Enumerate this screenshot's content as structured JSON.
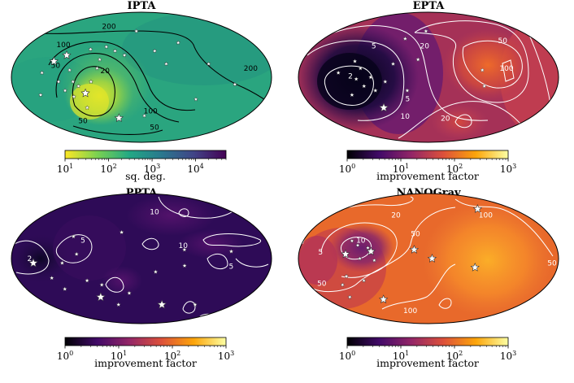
{
  "chart_data": [
    {
      "type": "heatmap",
      "projection": "mollweide",
      "title": "IPTA",
      "colormap": "viridis (reversed)",
      "colorbar": {
        "label": "sq. deg.",
        "scale": "log",
        "range": [
          10,
          50000
        ],
        "ticks": [
          {
            "base": "10",
            "exp": "1"
          },
          {
            "base": "10",
            "exp": "2"
          },
          {
            "base": "10",
            "exp": "3"
          },
          {
            "base": "10",
            "exp": "4"
          }
        ]
      },
      "contour_levels": [
        "20",
        "50",
        "100",
        "200"
      ],
      "contour_labels": [
        {
          "text": "200",
          "rel": [
            -0.25,
            0.78
          ]
        },
        {
          "text": "100",
          "rel": [
            -0.6,
            0.5
          ]
        },
        {
          "text": "50",
          "rel": [
            -0.66,
            0.18
          ]
        },
        {
          "text": "20",
          "rel": [
            -0.28,
            0.1
          ]
        },
        {
          "text": "200",
          "rel": [
            0.84,
            0.14
          ]
        },
        {
          "text": "100",
          "rel": [
            0.07,
            -0.52
          ]
        },
        {
          "text": "50",
          "rel": [
            0.1,
            -0.77
          ]
        },
        {
          "text": "50",
          "rel": [
            -0.45,
            -0.67
          ]
        }
      ],
      "pulsars": [
        {
          "lon": -125,
          "lat": 18,
          "size": "large"
        },
        {
          "lon": -110,
          "lat": 25,
          "size": "large"
        },
        {
          "lon": -100,
          "lat": 8,
          "size": "small"
        },
        {
          "lon": -95,
          "lat": -5,
          "size": "small"
        },
        {
          "lon": -115,
          "lat": -5,
          "size": "small"
        },
        {
          "lon": -108,
          "lat": -15,
          "size": "small"
        },
        {
          "lon": -98,
          "lat": -22,
          "size": "small"
        },
        {
          "lon": -88,
          "lat": -10,
          "size": "small"
        },
        {
          "lon": -80,
          "lat": -18,
          "size": "large"
        },
        {
          "lon": -70,
          "lat": -5,
          "size": "small"
        },
        {
          "lon": -62,
          "lat": 10,
          "size": "small"
        },
        {
          "lon": -78,
          "lat": 32,
          "size": "small"
        },
        {
          "lon": -55,
          "lat": 35,
          "size": "small"
        },
        {
          "lon": -40,
          "lat": 30,
          "size": "small"
        },
        {
          "lon": -85,
          "lat": -35,
          "size": "small"
        },
        {
          "lon": -145,
          "lat": -20,
          "size": "small"
        },
        {
          "lon": -138,
          "lat": 5,
          "size": "small"
        },
        {
          "lon": -25,
          "lat": 25,
          "size": "small"
        },
        {
          "lon": -10,
          "lat": 55,
          "size": "small"
        },
        {
          "lon": 20,
          "lat": 30,
          "size": "small"
        },
        {
          "lon": 35,
          "lat": 15,
          "size": "small"
        },
        {
          "lon": 60,
          "lat": 40,
          "size": "small"
        },
        {
          "lon": 95,
          "lat": 15,
          "size": "small"
        },
        {
          "lon": 130,
          "lat": -8,
          "size": "small"
        },
        {
          "lon": 80,
          "lat": -25,
          "size": "small"
        },
        {
          "lon": -40,
          "lat": -48,
          "size": "large"
        },
        {
          "lon": 5,
          "lat": -45,
          "size": "small"
        },
        {
          "lon": -60,
          "lat": 20,
          "size": "small"
        }
      ]
    },
    {
      "type": "heatmap",
      "projection": "mollweide",
      "title": "EPTA",
      "colormap": "inferno",
      "colorbar": {
        "label": "improvement factor",
        "scale": "log",
        "range": [
          1,
          1000
        ],
        "ticks": [
          {
            "base": "10",
            "exp": "0"
          },
          {
            "base": "10",
            "exp": "1"
          },
          {
            "base": "10",
            "exp": "2"
          },
          {
            "base": "10",
            "exp": "3"
          }
        ]
      },
      "contour_levels": [
        "2",
        "5",
        "10",
        "20",
        "50",
        "100"
      ],
      "contour_labels": [
        {
          "text": "2",
          "rel": [
            -0.6,
            0.02
          ]
        },
        {
          "text": "5",
          "rel": [
            -0.42,
            0.48
          ]
        },
        {
          "text": "5",
          "rel": [
            -0.16,
            -0.33
          ]
        },
        {
          "text": "20",
          "rel": [
            -0.03,
            0.48
          ]
        },
        {
          "text": "10",
          "rel": [
            -0.18,
            -0.6
          ]
        },
        {
          "text": "20",
          "rel": [
            0.13,
            -0.63
          ]
        },
        {
          "text": "50",
          "rel": [
            0.57,
            0.56
          ]
        },
        {
          "text": "100",
          "rel": [
            0.6,
            0.14
          ]
        }
      ],
      "pulsars": [
        {
          "lon": -105,
          "lat": 18,
          "size": "small"
        },
        {
          "lon": -95,
          "lat": 10,
          "size": "small"
        },
        {
          "lon": -100,
          "lat": -2,
          "size": "small"
        },
        {
          "lon": -90,
          "lat": -10,
          "size": "small"
        },
        {
          "lon": -80,
          "lat": 0,
          "size": "small"
        },
        {
          "lon": -110,
          "lat": -20,
          "size": "small"
        },
        {
          "lon": -75,
          "lat": -15,
          "size": "small"
        },
        {
          "lon": -60,
          "lat": -5,
          "size": "small"
        },
        {
          "lon": -70,
          "lat": -35,
          "size": "large"
        },
        {
          "lon": -50,
          "lat": 15,
          "size": "small"
        },
        {
          "lon": -40,
          "lat": 45,
          "size": "small"
        },
        {
          "lon": -15,
          "lat": 20,
          "size": "small"
        },
        {
          "lon": -30,
          "lat": -15,
          "size": "small"
        },
        {
          "lon": -125,
          "lat": 5,
          "size": "small"
        },
        {
          "lon": 75,
          "lat": 8,
          "size": "small"
        },
        {
          "lon": 78,
          "lat": -10,
          "size": "small"
        },
        {
          "lon": -5,
          "lat": 55,
          "size": "small"
        }
      ]
    },
    {
      "type": "heatmap",
      "projection": "mollweide",
      "title": "PPTA",
      "colormap": "inferno",
      "colorbar": {
        "label": "improvement factor",
        "scale": "log",
        "range": [
          1,
          1000
        ],
        "ticks": [
          {
            "base": "10",
            "exp": "0"
          },
          {
            "base": "10",
            "exp": "1"
          },
          {
            "base": "10",
            "exp": "2"
          },
          {
            "base": "10",
            "exp": "3"
          }
        ]
      },
      "contour_levels": [
        "2",
        "5",
        "10"
      ],
      "contour_labels": [
        {
          "text": "2",
          "rel": [
            -0.86,
            0.0
          ]
        },
        {
          "text": "5",
          "rel": [
            -0.45,
            0.28
          ]
        },
        {
          "text": "10",
          "rel": [
            0.1,
            0.72
          ]
        },
        {
          "text": "10",
          "rel": [
            0.32,
            0.2
          ]
        },
        {
          "text": "5",
          "rel": [
            0.69,
            -0.12
          ]
        }
      ],
      "pulsars": [
        {
          "lon": -150,
          "lat": -5,
          "size": "large"
        },
        {
          "lon": -130,
          "lat": -22,
          "size": "small"
        },
        {
          "lon": -120,
          "lat": -35,
          "size": "small"
        },
        {
          "lon": -100,
          "lat": 25,
          "size": "small"
        },
        {
          "lon": -90,
          "lat": 5,
          "size": "small"
        },
        {
          "lon": -80,
          "lat": -25,
          "size": "small"
        },
        {
          "lon": -70,
          "lat": -45,
          "size": "large"
        },
        {
          "lon": -60,
          "lat": -30,
          "size": "small"
        },
        {
          "lon": -45,
          "lat": -55,
          "size": "small"
        },
        {
          "lon": -20,
          "lat": -40,
          "size": "small"
        },
        {
          "lon": 20,
          "lat": -15,
          "size": "small"
        },
        {
          "lon": 40,
          "lat": -55,
          "size": "large"
        },
        {
          "lon": 60,
          "lat": -8,
          "size": "small"
        },
        {
          "lon": 105,
          "lat": -55,
          "size": "small"
        },
        {
          "lon": -110,
          "lat": -5,
          "size": "small"
        },
        {
          "lon": 125,
          "lat": 8,
          "size": "small"
        },
        {
          "lon": 60,
          "lat": 10,
          "size": "small"
        },
        {
          "lon": -30,
          "lat": 30,
          "size": "small"
        }
      ]
    },
    {
      "type": "heatmap",
      "projection": "mollweide",
      "title": "NANOGrav",
      "colormap": "inferno",
      "colorbar": {
        "label": "improvement factor",
        "scale": "log",
        "range": [
          1,
          1000
        ],
        "ticks": [
          {
            "base": "10",
            "exp": "0"
          },
          {
            "base": "10",
            "exp": "1"
          },
          {
            "base": "10",
            "exp": "2"
          },
          {
            "base": "10",
            "exp": "3"
          }
        ]
      },
      "contour_levels": [
        "5",
        "10",
        "20",
        "50",
        "100"
      ],
      "contour_labels": [
        {
          "text": "20",
          "rel": [
            -0.25,
            0.67
          ]
        },
        {
          "text": "10",
          "rel": [
            -0.52,
            0.28
          ]
        },
        {
          "text": "5",
          "rel": [
            -0.83,
            0.1
          ]
        },
        {
          "text": "50",
          "rel": [
            -0.82,
            -0.38
          ]
        },
        {
          "text": "50",
          "rel": [
            -0.1,
            0.38
          ]
        },
        {
          "text": "100",
          "rel": [
            0.44,
            0.67
          ]
        },
        {
          "text": "100",
          "rel": [
            -0.14,
            -0.8
          ]
        },
        {
          "text": "50",
          "rel": [
            0.95,
            -0.07
          ]
        }
      ],
      "pulsars": [
        {
          "lon": -110,
          "lat": 20,
          "size": "small"
        },
        {
          "lon": -100,
          "lat": 15,
          "size": "small"
        },
        {
          "lon": -115,
          "lat": 5,
          "size": "large"
        },
        {
          "lon": -95,
          "lat": 0,
          "size": "small"
        },
        {
          "lon": -80,
          "lat": 8,
          "size": "large"
        },
        {
          "lon": -75,
          "lat": -2,
          "size": "small"
        },
        {
          "lon": -130,
          "lat": -30,
          "size": "small"
        },
        {
          "lon": -118,
          "lat": -20,
          "size": "small"
        },
        {
          "lon": -95,
          "lat": -25,
          "size": "small"
        },
        {
          "lon": -135,
          "lat": -45,
          "size": "small"
        },
        {
          "lon": -80,
          "lat": -48,
          "size": "large"
        },
        {
          "lon": -20,
          "lat": 10,
          "size": "large"
        },
        {
          "lon": 5,
          "lat": 0,
          "size": "large"
        },
        {
          "lon": 65,
          "lat": -10,
          "size": "large"
        },
        {
          "lon": 105,
          "lat": 60,
          "size": "large"
        },
        {
          "lon": -85,
          "lat": 12,
          "size": "small"
        }
      ]
    }
  ]
}
